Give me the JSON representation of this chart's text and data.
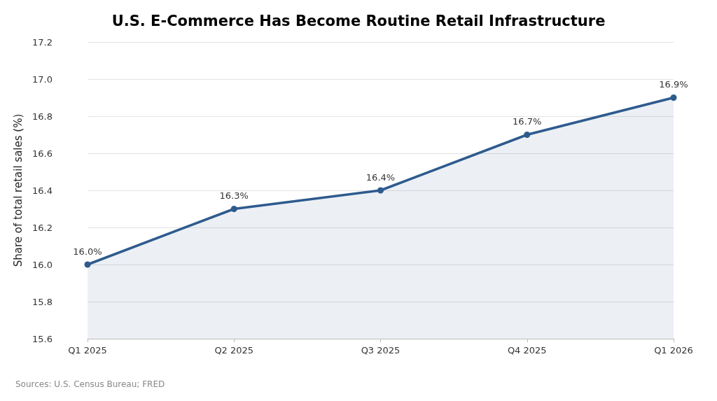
{
  "chart_data": {
    "type": "area",
    "title": "U.S. E-Commerce Has Become Routine Retail Infrastructure",
    "ylabel": "Share of total retail sales (%)",
    "categories": [
      "Q1 2025",
      "Q2 2025",
      "Q3 2025",
      "Q4 2025",
      "Q1 2026"
    ],
    "series": [
      {
        "color": "#2e5b8e",
        "values": [
          16.0,
          16.3,
          16.4,
          16.7,
          16.9
        ],
        "value_labels": [
          "16.0%",
          "16.3%",
          "16.4%",
          "16.7%",
          "16.9%"
        ]
      }
    ],
    "ylim": [
      15.6,
      17.2
    ],
    "yticks": [
      15.6,
      15.8,
      {
        "value": 16,
        "label": "16.0"
      },
      16.2,
      16.4,
      16.6,
      16.8,
      {
        "value": 17,
        "label": "17.0"
      },
      17.2
    ],
    "grid": "y",
    "marker": "circle",
    "line_style": "solid",
    "annotations": [
      "Sources: U.S. Census Bureau; FRED"
    ]
  }
}
